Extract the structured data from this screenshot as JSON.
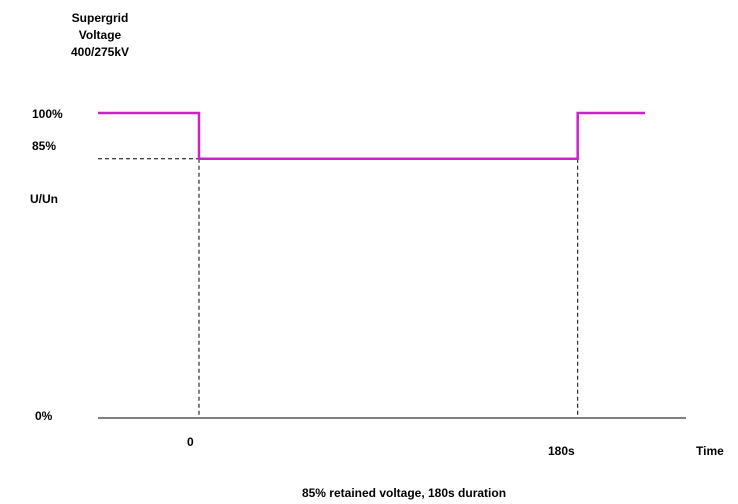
{
  "chart_data": {
    "type": "line",
    "title_lines": [
      "Supergrid",
      "Voltage",
      "400/275kV"
    ],
    "ylabel": "U/Un",
    "xlabel": "Time",
    "y_tick_labels": [
      "100%",
      "85%",
      "0%"
    ],
    "x_tick_labels": [
      "0",
      "180s"
    ],
    "caption": "85% retained voltage, 180s duration",
    "ylim": [
      0,
      100
    ],
    "xlim": [
      -60,
      265
    ],
    "series": [
      {
        "color": "#cc22cc",
        "x": [
          -60,
          0,
          0,
          225,
          225,
          265
        ],
        "y": [
          100,
          100,
          85,
          85,
          100,
          100
        ]
      }
    ],
    "reference_lines": {
      "horizontal_dashed_at_y": 85,
      "vertical_dashed_at_x": [
        0,
        225
      ]
    },
    "grid": false
  }
}
